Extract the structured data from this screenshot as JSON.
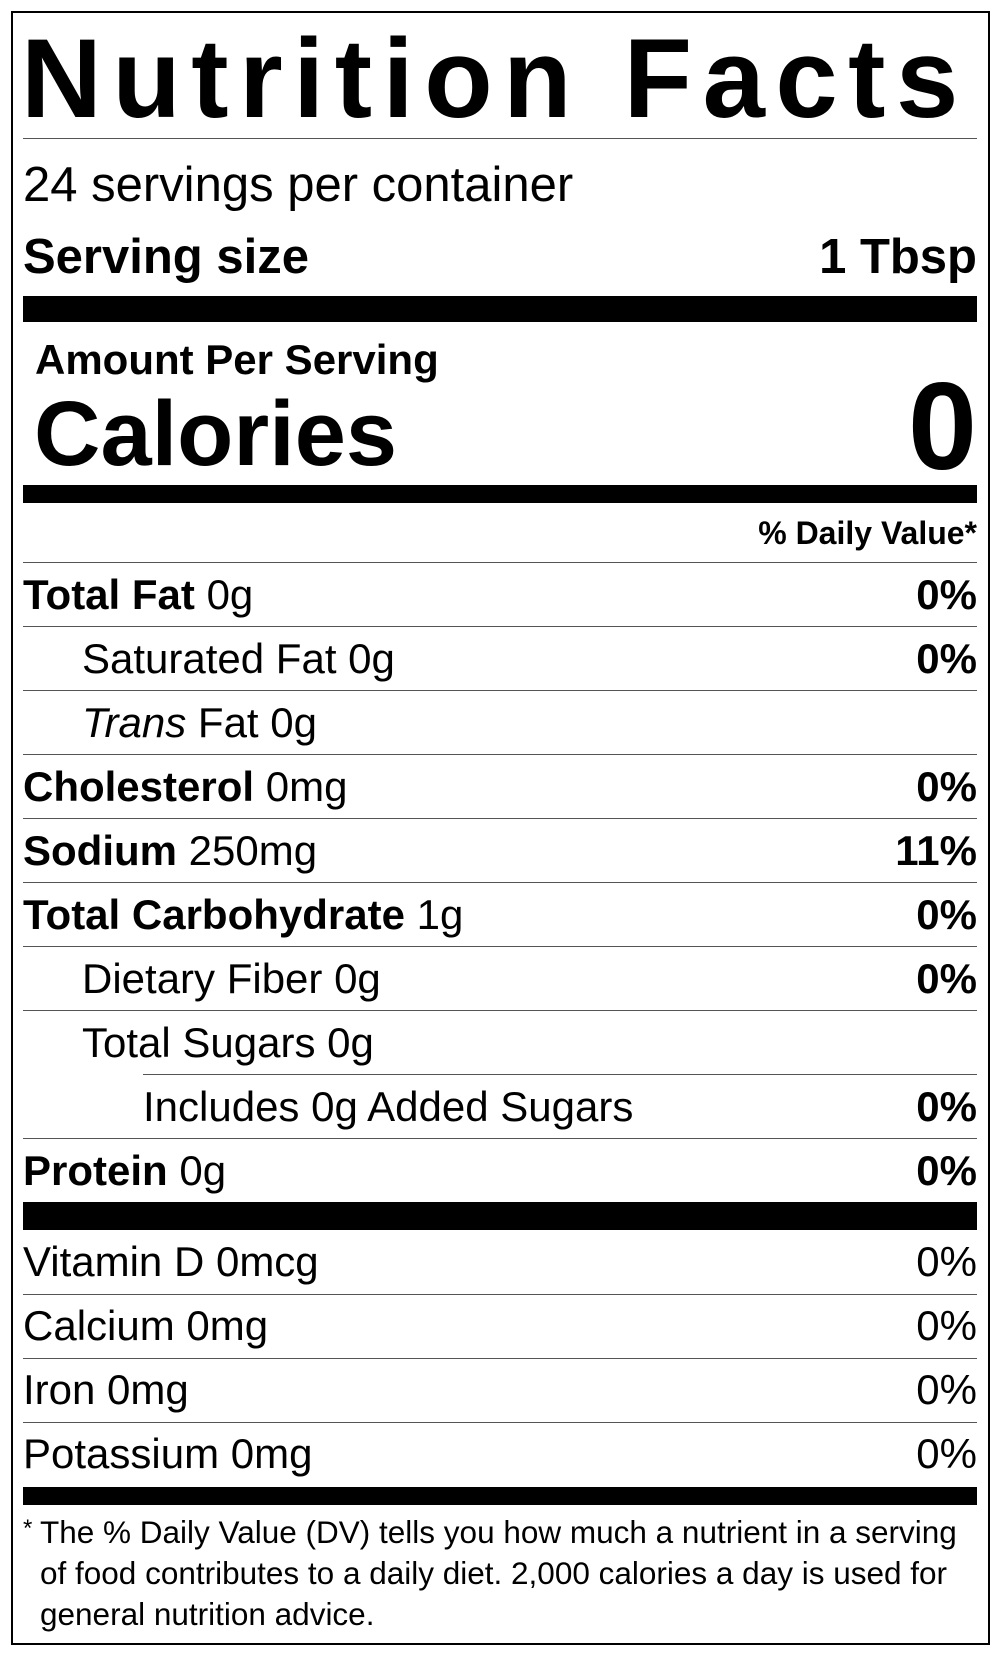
{
  "title": "Nutrition Facts",
  "servings": "24 servings per container",
  "serving_size": {
    "label": "Serving size",
    "value": "1 Tbsp"
  },
  "amount_per_serving": "Amount Per Serving",
  "calories": {
    "label": "Calories",
    "value": "0"
  },
  "daily_value_header": "% Daily Value*",
  "nutrients": [
    {
      "name": "Total Fat",
      "amount": "0g",
      "dv": "0%",
      "sub": [
        {
          "name": "Saturated Fat",
          "amount": "0g",
          "dv": "0%"
        },
        {
          "prefix": "Trans",
          "name": "Fat",
          "amount": "0g"
        }
      ]
    },
    {
      "name": "Cholesterol",
      "amount": "0mg",
      "dv": "0%"
    },
    {
      "name": "Sodium",
      "amount": "250mg",
      "dv": "11%"
    },
    {
      "name": "Total Carbohydrate",
      "amount": "1g",
      "dv": "0%",
      "sub": [
        {
          "name": "Dietary Fiber",
          "amount": "0g",
          "dv": "0%"
        },
        {
          "name": "Total Sugars",
          "amount": "0g",
          "sub": [
            {
              "name": "Includes 0g Added Sugars",
              "dv": "0%"
            }
          ]
        }
      ]
    },
    {
      "name": "Protein",
      "amount": "0g",
      "dv": "0%"
    }
  ],
  "vitamins": [
    {
      "name": "Vitamin D 0mcg",
      "dv": "0%"
    },
    {
      "name": "Calcium 0mg",
      "dv": "0%"
    },
    {
      "name": "Iron 0mg",
      "dv": "0%"
    },
    {
      "name": "Potassium 0mg",
      "dv": "0%"
    }
  ],
  "footnote": {
    "mark": "*",
    "text": "The % Daily Value (DV) tells you how much a nutrient in a serving of food contributes to a daily diet. 2,000 calories a day is used for general nutrition advice."
  }
}
